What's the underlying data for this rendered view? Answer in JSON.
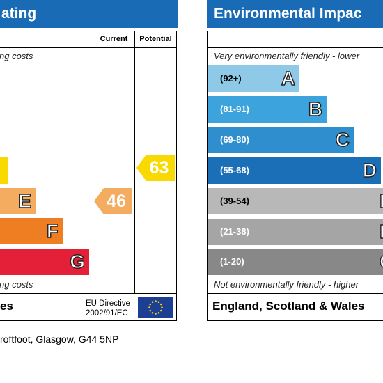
{
  "energy_panel": {
    "title": "ating",
    "col_current": "Current",
    "col_potential": "Potential",
    "top_note": "ng costs",
    "bottom_note": "ng costs",
    "footer": "es",
    "eu_directive_line1": "EU Directive",
    "eu_directive_line2": "2002/91/EC",
    "bands": [
      {
        "letter": "",
        "color": "#f9d900"
      },
      {
        "letter": "E",
        "color": "#f4ac61"
      },
      {
        "letter": "F",
        "color": "#ef7d22"
      },
      {
        "letter": "G",
        "color": "#e41f38"
      }
    ],
    "current_rating": "46",
    "current_color": "#f4ac61",
    "potential_rating": "63",
    "potential_color": "#f9d900"
  },
  "environmental_panel": {
    "title": "Environmental Impac",
    "top_note": "Very environmentally friendly - lower",
    "bottom_note": "Not environmentally friendly - higher",
    "footer": "England, Scotland & Wales",
    "bands": [
      {
        "range": "(92+)",
        "letter": "A",
        "color": "#8ec9e8",
        "range_color": "#000000"
      },
      {
        "range": "(81-91)",
        "letter": "B",
        "color": "#3ca3dc",
        "range_color": "#ffffff"
      },
      {
        "range": "(69-80)",
        "letter": "C",
        "color": "#2f8fce",
        "range_color": "#ffffff"
      },
      {
        "range": "(55-68)",
        "letter": "D",
        "color": "#1b6fb6",
        "range_color": "#ffffff"
      },
      {
        "range": "(39-54)",
        "letter": "E",
        "color": "#b8b8b8",
        "range_color": "#000000"
      },
      {
        "range": "(21-38)",
        "letter": "F",
        "color": "#a5a5a5",
        "range_color": "#ffffff"
      },
      {
        "range": "(1-20)",
        "letter": "G",
        "color": "#888888",
        "range_color": "#ffffff"
      }
    ]
  },
  "address": "roftfoot, Glasgow, G44 5NP"
}
